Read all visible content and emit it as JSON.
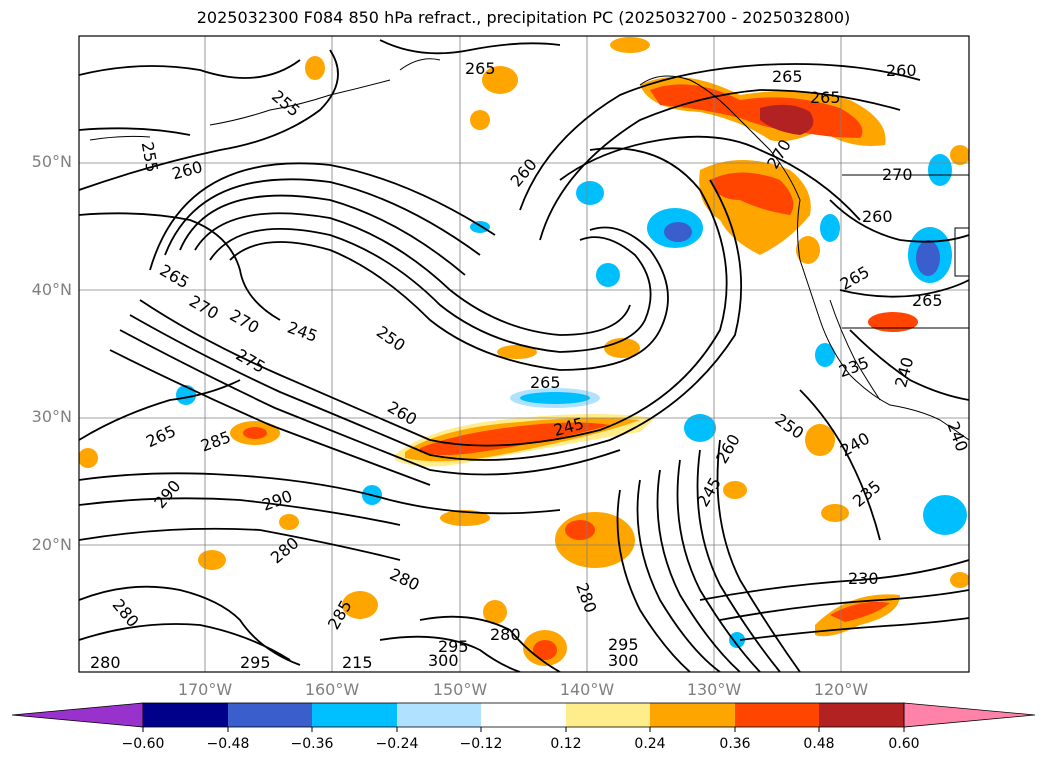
{
  "title": "2025032300 F084 850 hPa refract., precipitation PC (2025032700 - 2025032800)",
  "lat_labels": [
    "50°N",
    "40°N",
    "30°N",
    "20°N"
  ],
  "lon_labels": [
    "170°W",
    "160°W",
    "150°W",
    "140°W",
    "130°W",
    "120°W"
  ],
  "contour_labels": [
    "255",
    "260",
    "265",
    "270",
    "275",
    "285",
    "290",
    "280",
    "245",
    "250",
    "265",
    "260",
    "245",
    "240",
    "235",
    "230",
    "295",
    "300",
    "215"
  ],
  "colorbar": {
    "colors": [
      "#9932cc",
      "#00008b",
      "#3a5fcd",
      "#00bfff",
      "#b0e2ff",
      "#ffffff",
      "#ffec8b",
      "#ffa500",
      "#ff4500",
      "#b22222",
      "#ff83a8"
    ],
    "tick_labels": [
      "−0.60",
      "−0.48",
      "−0.36",
      "−0.24",
      "−0.12",
      "0.12",
      "0.24",
      "0.36",
      "0.48",
      "0.60"
    ]
  },
  "colors": {
    "grid": "#808080",
    "contour": "#000000",
    "frame": "#000000"
  }
}
